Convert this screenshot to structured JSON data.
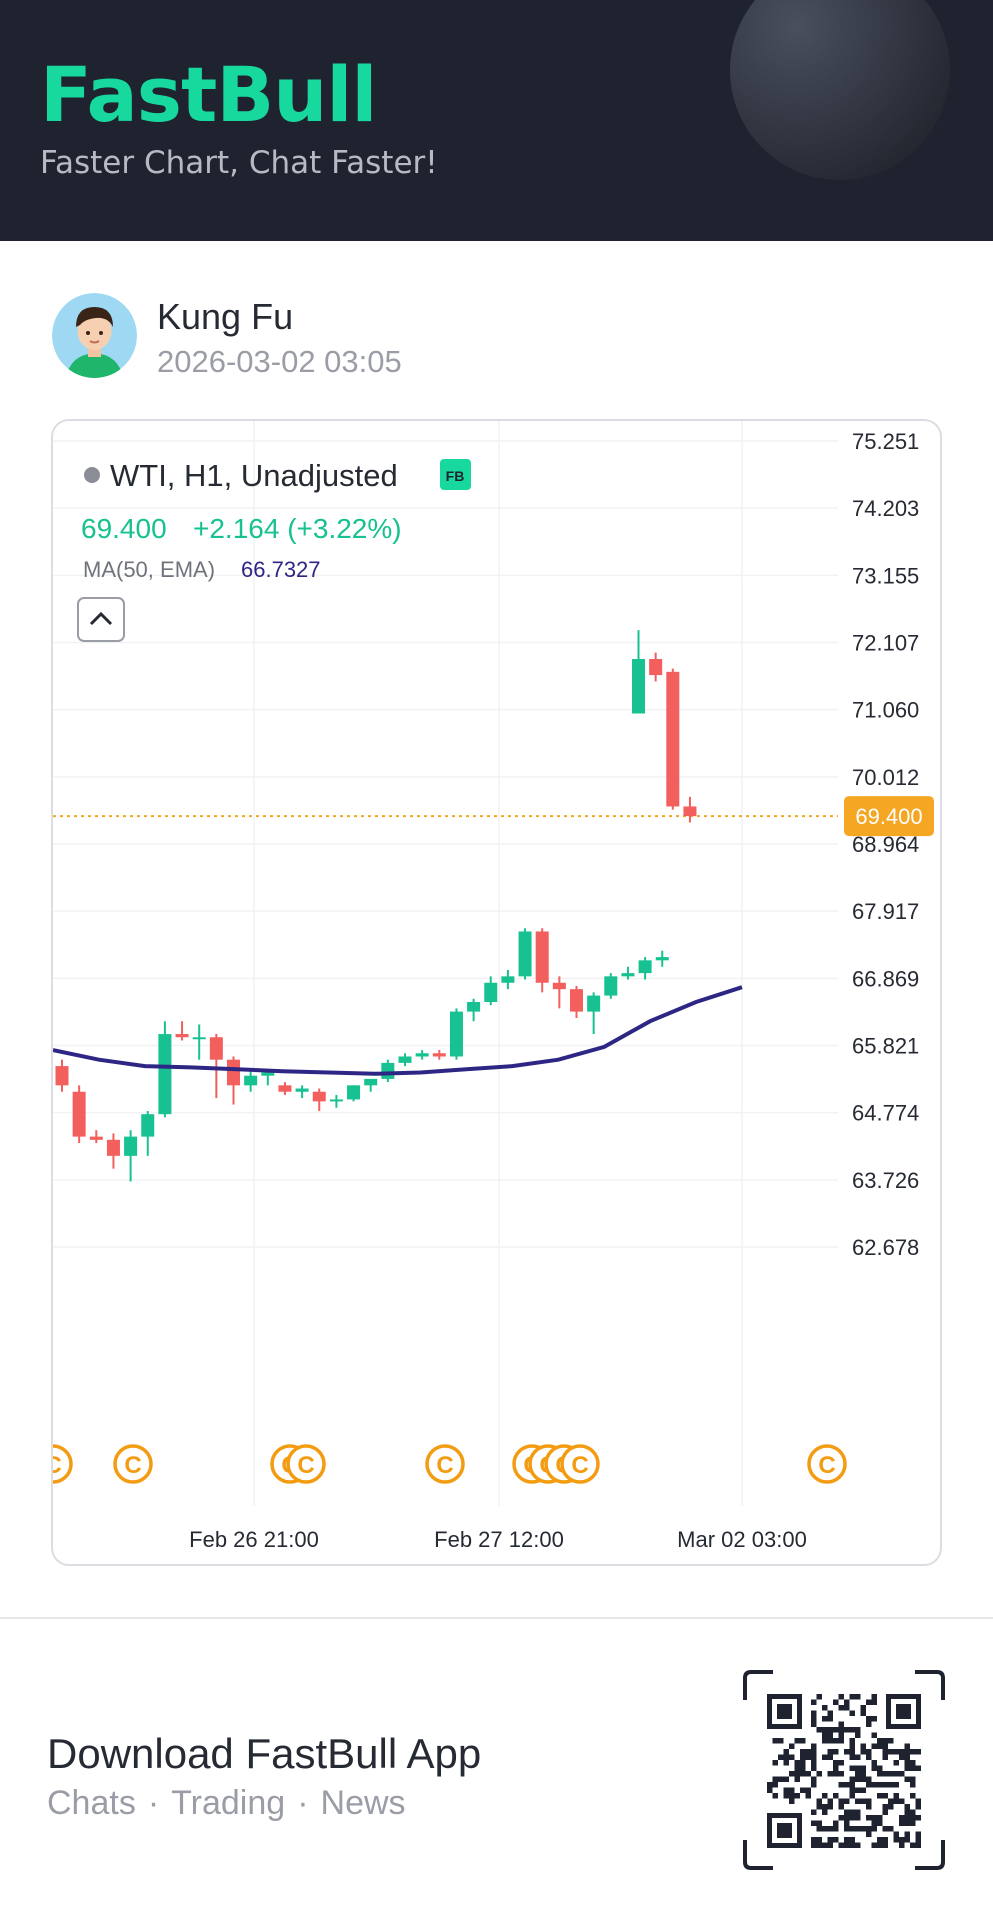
{
  "header": {
    "brand": "FastBull",
    "tagline": "Faster Chart, Chat Faster!"
  },
  "post": {
    "username": "Kung Fu",
    "timestamp": "2026-03-02 03:05"
  },
  "chart": {
    "symbol_line": "WTI, H1, Unadjusted",
    "badge": "FB",
    "price": "69.400",
    "change": "+2.164 (+3.22%)",
    "ma_label": "MA(50, EMA)",
    "ma_value": "66.7327",
    "current_price_tag": "69.400",
    "colors": {
      "up": "#17c191",
      "down": "#f25f5c",
      "ma_line": "#2e2685",
      "price_tag": "#f5a623",
      "event_icon": "#f39c12"
    }
  },
  "chart_data": {
    "type": "candlestick",
    "title": "WTI, H1, Unadjusted",
    "y_ticks": [
      "75.251",
      "74.203",
      "73.155",
      "72.107",
      "71.060",
      "70.012",
      "68.964",
      "67.917",
      "66.869",
      "65.821",
      "64.774",
      "63.726",
      "62.678"
    ],
    "x_ticks": [
      "Feb 26 21:00",
      "Feb 27 12:00",
      "Mar 02 03:00"
    ],
    "ylim": [
      62.678,
      75.251
    ],
    "current_price": 69.4,
    "candles": [
      {
        "o": 65.5,
        "h": 65.6,
        "l": 65.1,
        "c": 65.2
      },
      {
        "o": 65.1,
        "h": 65.2,
        "l": 64.3,
        "c": 64.4
      },
      {
        "o": 64.4,
        "h": 64.5,
        "l": 64.3,
        "c": 64.35
      },
      {
        "o": 64.35,
        "h": 64.45,
        "l": 63.9,
        "c": 64.1
      },
      {
        "o": 64.1,
        "h": 64.5,
        "l": 63.7,
        "c": 64.4
      },
      {
        "o": 64.4,
        "h": 64.8,
        "l": 64.1,
        "c": 64.75
      },
      {
        "o": 64.75,
        "h": 66.2,
        "l": 64.7,
        "c": 66.0
      },
      {
        "o": 66.0,
        "h": 66.2,
        "l": 65.9,
        "c": 65.95
      },
      {
        "o": 65.95,
        "h": 66.15,
        "l": 65.6,
        "c": 65.95
      },
      {
        "o": 65.95,
        "h": 66.0,
        "l": 65.0,
        "c": 65.6
      },
      {
        "o": 65.6,
        "h": 65.65,
        "l": 64.9,
        "c": 65.2
      },
      {
        "o": 65.2,
        "h": 65.45,
        "l": 65.1,
        "c": 65.35
      },
      {
        "o": 65.35,
        "h": 65.45,
        "l": 65.2,
        "c": 65.4
      },
      {
        "o": 65.2,
        "h": 65.25,
        "l": 65.05,
        "c": 65.1
      },
      {
        "o": 65.1,
        "h": 65.2,
        "l": 65.0,
        "c": 65.15
      },
      {
        "o": 65.1,
        "h": 65.15,
        "l": 64.8,
        "c": 64.95
      },
      {
        "o": 64.95,
        "h": 65.05,
        "l": 64.85,
        "c": 64.98
      },
      {
        "o": 64.98,
        "h": 65.2,
        "l": 64.95,
        "c": 65.2
      },
      {
        "o": 65.2,
        "h": 65.3,
        "l": 65.1,
        "c": 65.3
      },
      {
        "o": 65.3,
        "h": 65.6,
        "l": 65.25,
        "c": 65.55
      },
      {
        "o": 65.55,
        "h": 65.7,
        "l": 65.5,
        "c": 65.65
      },
      {
        "o": 65.65,
        "h": 65.75,
        "l": 65.6,
        "c": 65.7
      },
      {
        "o": 65.7,
        "h": 65.75,
        "l": 65.6,
        "c": 65.65
      },
      {
        "o": 65.65,
        "h": 66.4,
        "l": 65.6,
        "c": 66.35
      },
      {
        "o": 66.35,
        "h": 66.55,
        "l": 66.2,
        "c": 66.5
      },
      {
        "o": 66.5,
        "h": 66.9,
        "l": 66.45,
        "c": 66.8
      },
      {
        "o": 66.8,
        "h": 67.0,
        "l": 66.7,
        "c": 66.9
      },
      {
        "o": 66.9,
        "h": 67.65,
        "l": 66.85,
        "c": 67.6
      },
      {
        "o": 67.6,
        "h": 67.65,
        "l": 66.65,
        "c": 66.8
      },
      {
        "o": 66.8,
        "h": 66.9,
        "l": 66.4,
        "c": 66.7
      },
      {
        "o": 66.7,
        "h": 66.75,
        "l": 66.25,
        "c": 66.35
      },
      {
        "o": 66.35,
        "h": 66.65,
        "l": 66.0,
        "c": 66.6
      },
      {
        "o": 66.6,
        "h": 66.95,
        "l": 66.55,
        "c": 66.9
      },
      {
        "o": 66.9,
        "h": 67.05,
        "l": 66.85,
        "c": 66.95
      },
      {
        "o": 66.95,
        "h": 67.2,
        "l": 66.85,
        "c": 67.15
      },
      {
        "o": 67.15,
        "h": 67.3,
        "l": 67.05,
        "c": 67.2
      },
      {
        "o": 71.0,
        "h": 72.3,
        "l": 71.0,
        "c": 71.85
      },
      {
        "o": 71.85,
        "h": 71.95,
        "l": 71.5,
        "c": 71.6
      },
      {
        "o": 71.65,
        "h": 71.7,
        "l": 69.5,
        "c": 69.55
      },
      {
        "o": 69.55,
        "h": 69.7,
        "l": 69.3,
        "c": 69.4
      }
    ],
    "ma_series": [
      65.75,
      65.6,
      65.5,
      65.48,
      65.45,
      65.42,
      65.4,
      65.38,
      65.4,
      65.45,
      65.5,
      65.6,
      65.8,
      66.2,
      66.5,
      66.73
    ]
  },
  "footer": {
    "download_title": "Download FastBull App",
    "sub_items": [
      "Chats",
      "Trading",
      "News"
    ],
    "separator": "·"
  }
}
